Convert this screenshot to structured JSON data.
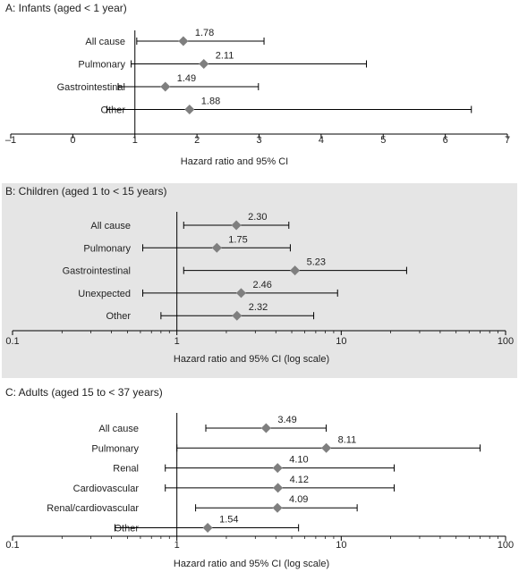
{
  "colors": {
    "marker": "#7f7f7f",
    "line": "#000000",
    "panel_b_bg": "#e5e5e5",
    "text": "#222222"
  },
  "chart_data": [
    {
      "type": "forest",
      "title": "A: Infants (aged < 1 year)",
      "xlabel": "Hazard ratio and 95% CI",
      "xscale": "linear",
      "xlim": [
        -1,
        7
      ],
      "ticks": [
        -1,
        0,
        1,
        2,
        3,
        4,
        5,
        6,
        7
      ],
      "tick_labels": [
        "–1",
        "0",
        "1",
        "2",
        "3",
        "4",
        "5",
        "6",
        "7"
      ],
      "reference": 1,
      "categories": [
        "All cause",
        "Pulmonary",
        "Gastrointestinal",
        "Other"
      ],
      "hr": [
        1.78,
        2.11,
        1.49,
        1.88
      ],
      "hr_labels": [
        "1.78",
        "2.11",
        "1.49",
        "1.88"
      ],
      "ci_low": [
        1.03,
        0.94,
        0.73,
        0.55
      ],
      "ci_high": [
        3.08,
        4.73,
        2.99,
        6.42
      ]
    },
    {
      "type": "forest",
      "title": "B: Children (aged 1 to < 15 years)",
      "xlabel": "Hazard ratio and 95% CI (log scale)",
      "xscale": "log",
      "xlim": [
        0.1,
        100
      ],
      "ticks": [
        0.1,
        1,
        10,
        100
      ],
      "tick_labels": [
        "0.1",
        "1",
        "10",
        "100"
      ],
      "reference": 1,
      "categories": [
        "All cause",
        "Pulmonary",
        "Gastrointestinal",
        "Unexpected",
        "Other"
      ],
      "hr": [
        2.3,
        1.75,
        5.23,
        2.46,
        2.32
      ],
      "hr_labels": [
        "2.30",
        "1.75",
        "5.23",
        "2.46",
        "2.32"
      ],
      "ci_low": [
        1.1,
        0.62,
        1.1,
        0.62,
        0.8
      ],
      "ci_high": [
        4.8,
        4.9,
        25,
        9.5,
        6.8
      ]
    },
    {
      "type": "forest",
      "title": "C: Adults (aged 15 to < 37 years)",
      "xlabel": "Hazard ratio and 95% CI (log scale)",
      "xscale": "log",
      "xlim": [
        0.1,
        100
      ],
      "ticks": [
        0.1,
        1,
        10,
        100
      ],
      "tick_labels": [
        "0.1",
        "1",
        "10",
        "100"
      ],
      "reference": 1,
      "categories": [
        "All cause",
        "Pulmonary",
        "Renal",
        "Cardiovascular",
        "Renal/cardiovascular",
        "Other"
      ],
      "hr": [
        3.49,
        8.11,
        4.1,
        4.12,
        4.09,
        1.54
      ],
      "hr_labels": [
        "3.49",
        "8.11",
        "4.10",
        "4.12",
        "4.09",
        "1.54"
      ],
      "ci_low": [
        1.5,
        1.0,
        0.85,
        0.85,
        1.3,
        0.42
      ],
      "ci_high": [
        8.1,
        70,
        21,
        21,
        12.5,
        5.5
      ]
    }
  ]
}
